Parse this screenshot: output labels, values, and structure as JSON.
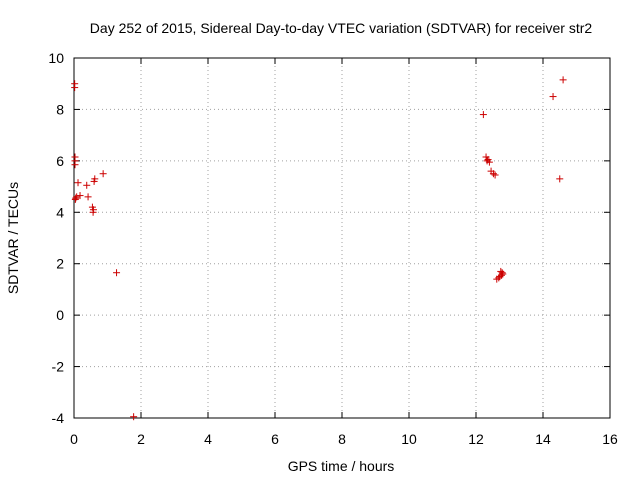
{
  "chart_data": {
    "type": "scatter",
    "title": "Day 252 of 2015, Sidereal Day-to-day VTEC variation (SDTVAR) for receiver str2",
    "xlabel": "GPS time / hours",
    "ylabel": "SDTVAR / TECUs",
    "xlim": [
      0,
      16
    ],
    "ylim": [
      -4,
      10
    ],
    "xticks": [
      0,
      2,
      4,
      6,
      8,
      10,
      12,
      14,
      16
    ],
    "yticks": [
      -4,
      -2,
      0,
      2,
      4,
      6,
      8,
      10
    ],
    "xtick_labels": [
      "0",
      "2",
      "4",
      "6",
      "8",
      "10",
      "12",
      "14",
      "16"
    ],
    "ytick_labels": [
      "-4",
      "-2",
      "0",
      "2",
      "4",
      "6",
      "8",
      "10"
    ],
    "grid": true,
    "marker_color": "#cc0000",
    "series": [
      {
        "name": "str2",
        "x": [
          0.02,
          0.02,
          0.03,
          0.03,
          0.03,
          0.04,
          0.05,
          0.08,
          0.12,
          0.18,
          0.38,
          0.42,
          0.55,
          0.57,
          0.58,
          0.6,
          0.62,
          0.87,
          1.27,
          1.78,
          12.22,
          12.3,
          12.33,
          12.36,
          12.4,
          12.45,
          12.52,
          12.57,
          12.62,
          12.68,
          12.71,
          12.74,
          12.76,
          12.78,
          12.8,
          14.3,
          14.5,
          14.6
        ],
        "y": [
          9.0,
          8.85,
          6.15,
          6.0,
          5.85,
          4.5,
          4.55,
          4.6,
          5.15,
          4.65,
          5.05,
          4.6,
          4.2,
          4.0,
          4.1,
          5.2,
          5.3,
          5.5,
          1.65,
          -3.95,
          7.8,
          6.15,
          6.0,
          6.05,
          5.95,
          5.6,
          5.5,
          5.45,
          1.4,
          1.45,
          1.5,
          1.7,
          1.55,
          1.65,
          1.6,
          8.5,
          5.3,
          9.15
        ]
      }
    ]
  }
}
